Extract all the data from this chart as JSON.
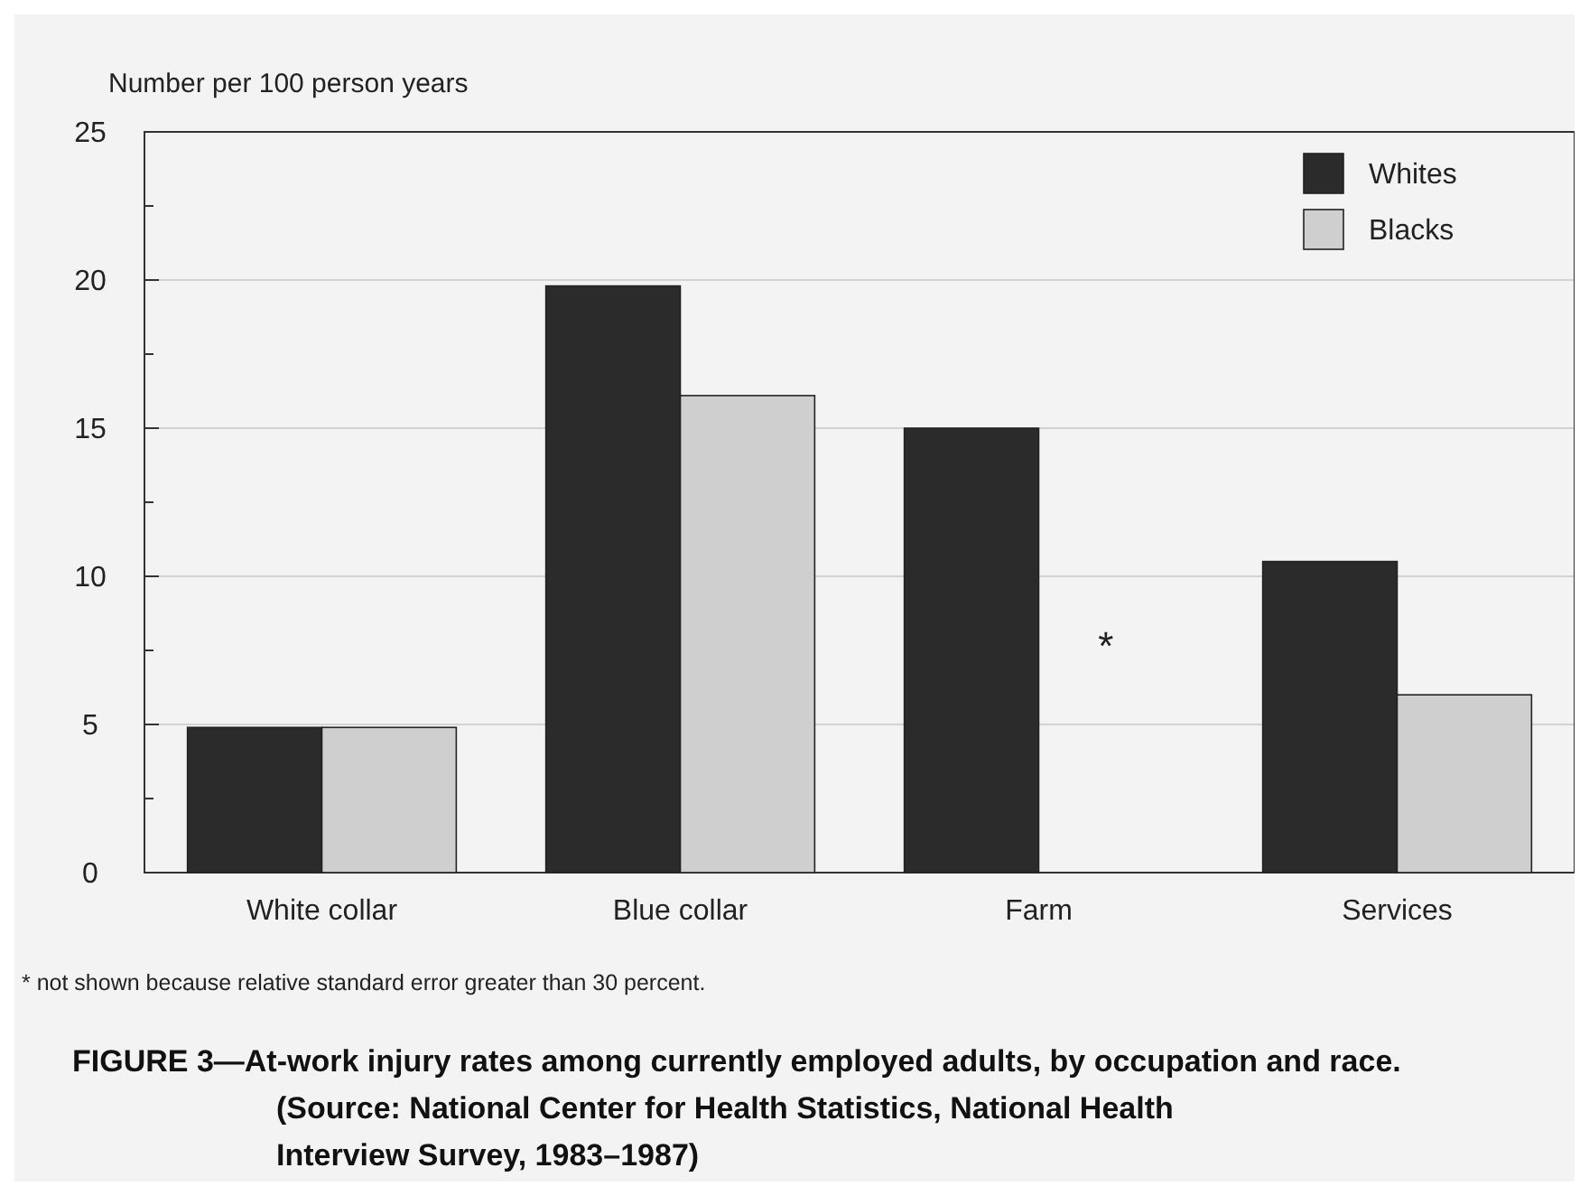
{
  "chart_data": {
    "type": "bar",
    "title": "FIGURE 3—At-work injury rates among currently employed adults, by occupation and race. (Source: National Center for Health Statistics, National Health Interview Survey, 1983–1987)",
    "ylabel": "Number per 100 person years",
    "categories": [
      "White collar",
      "Blue collar",
      "Farm",
      "Services"
    ],
    "series": [
      {
        "name": "Whites",
        "color": "#2b2b2b",
        "values": [
          4.9,
          19.8,
          15.0,
          10.5
        ]
      },
      {
        "name": "Blacks",
        "color": "#cfcfcf",
        "values": [
          4.9,
          16.1,
          null,
          6.0
        ]
      }
    ],
    "ylim": [
      0,
      25
    ],
    "yticks": [
      0,
      {
        "value": 2.5,
        "label": null
      },
      5,
      {
        "value": 7.5,
        "label": null
      },
      10,
      {
        "value": 12.5,
        "label": null
      },
      15,
      {
        "value": 17.5,
        "label": null
      },
      20,
      {
        "value": 22.5,
        "label": null
      },
      25
    ],
    "grid": "y",
    "legend": "top right",
    "annotations": [
      {
        "text": "*",
        "x": "Farm",
        "y": 8
      },
      "* not shown because relative standard error greater than 30 percent."
    ]
  }
}
